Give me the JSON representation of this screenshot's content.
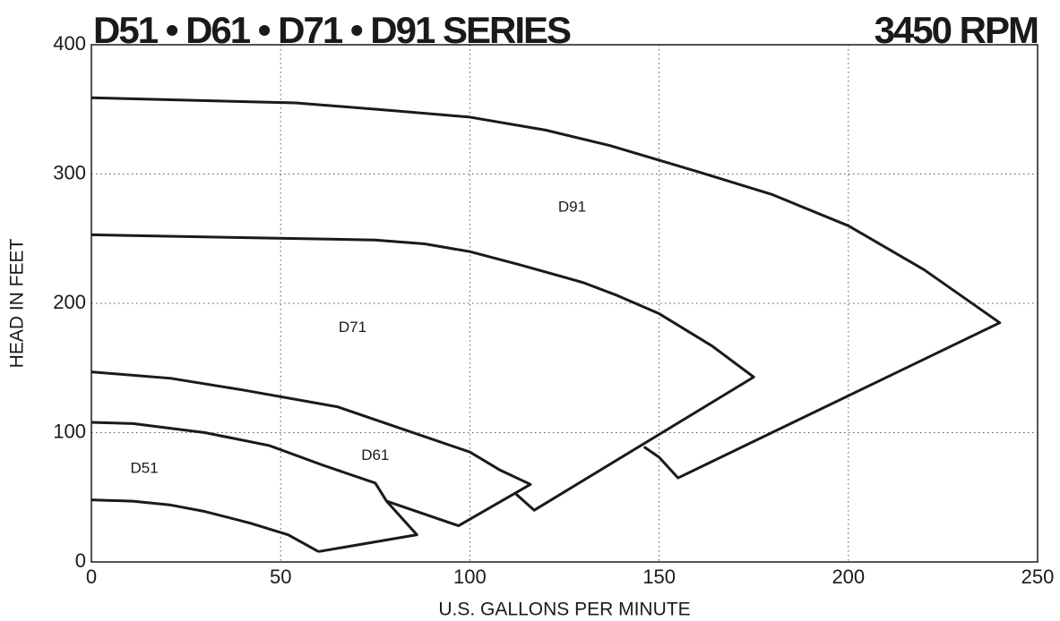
{
  "chart_data": {
    "type": "line",
    "title": "D51 • D61 • D71 • D91 SERIES",
    "subtitle": "3450 RPM",
    "xlabel": "U.S. GALLONS PER MINUTE",
    "ylabel": "HEAD IN FEET",
    "xlim": [
      0,
      250
    ],
    "xticks": [
      0,
      50,
      100,
      150,
      200,
      250
    ],
    "ylim": [
      0,
      400
    ],
    "yticks": [
      0,
      100,
      200,
      300,
      400
    ],
    "grid": true,
    "series": [
      {
        "color": "#1a1a1a",
        "x": [
          0,
          54,
          80,
          100,
          120,
          137,
          160,
          180,
          200,
          220,
          240,
          155,
          150,
          146
        ],
        "values": [
          359,
          355,
          349,
          344,
          334,
          322,
          302,
          284,
          260,
          226,
          185,
          65,
          81,
          89
        ]
      },
      {
        "color": "#1a1a1a",
        "x": [
          0,
          75,
          88,
          100,
          113,
          130,
          139,
          150,
          164,
          175,
          117,
          112
        ],
        "values": [
          253,
          249,
          246,
          240,
          230,
          216,
          206,
          192,
          167,
          143,
          40,
          53
        ]
      },
      {
        "color": "#1a1a1a",
        "x": [
          0,
          21,
          40,
          65,
          80,
          100,
          108,
          116,
          97,
          78
        ],
        "values": [
          147,
          142,
          133,
          120,
          105,
          85,
          71,
          60,
          28,
          47
        ]
      },
      {
        "color": "#1a1a1a",
        "x": [
          0,
          11,
          30,
          47,
          61,
          75,
          78,
          86,
          60
        ],
        "values": [
          108,
          107,
          100,
          90,
          75,
          61,
          47,
          21,
          8
        ]
      },
      {
        "color": "#1a1a1a",
        "x": [
          0,
          11,
          21,
          30,
          42,
          52,
          60
        ],
        "values": [
          48,
          47,
          44,
          39,
          30,
          21,
          8
        ]
      }
    ],
    "annotations": [
      {
        "text": "D91",
        "x": 127,
        "y": 274
      },
      {
        "text": "D71",
        "x": 69,
        "y": 181
      },
      {
        "text": "D61",
        "x": 75,
        "y": 82
      },
      {
        "text": "D51",
        "x": 14,
        "y": 72
      }
    ]
  }
}
